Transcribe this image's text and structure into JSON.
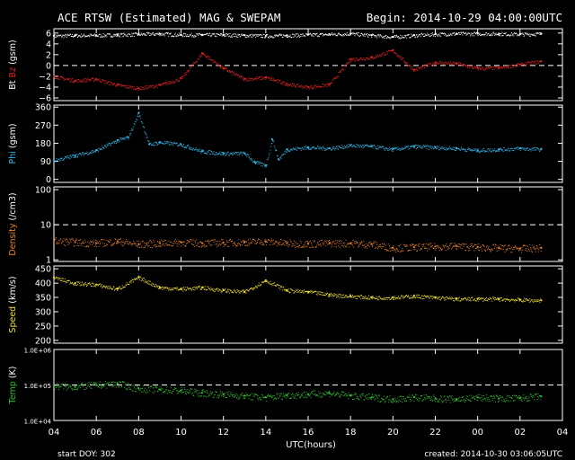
{
  "header": {
    "title": "ACE RTSW (Estimated) MAG & SWEPAM",
    "begin": "Begin: 2014-10-29 04:00:00UTC"
  },
  "footer": {
    "start_doy": "start DOY: 302",
    "created": "created: 2014-10-30 03:06:05UTC"
  },
  "colors": {
    "bt": "#ffffff",
    "bz": "#e02020",
    "phi": "#30b8e8",
    "density": "#e8802a",
    "speed": "#f0e030",
    "temp": "#30c030"
  },
  "chart_data": [
    {
      "type": "scatter",
      "ylabel_parts": [
        "Bt",
        "Bz",
        "(gsm)"
      ],
      "yticks": [
        6,
        4,
        2,
        0,
        -2,
        -4,
        -6
      ],
      "ytick_labels": [
        "6",
        "4",
        "2",
        "0",
        "−2",
        "−4",
        "−6"
      ],
      "ylim": [
        -6.5,
        6.8
      ],
      "dashed_ref": 0,
      "series": [
        {
          "name": "Bt",
          "x": [
            4,
            5,
            6,
            7,
            8,
            9,
            10,
            11,
            12,
            13,
            14,
            15,
            16,
            17,
            18,
            19,
            20,
            21,
            22,
            23,
            0,
            1,
            2,
            3
          ],
          "values": [
            5.5,
            5.6,
            5.6,
            5.7,
            5.8,
            5.9,
            5.7,
            5.7,
            5.7,
            5.6,
            5.5,
            5.6,
            5.7,
            5.8,
            5.9,
            5.6,
            5.3,
            5.6,
            5.8,
            5.9,
            5.9,
            5.9,
            5.8,
            5.9
          ]
        },
        {
          "name": "Bz",
          "x": [
            4,
            5,
            6,
            7,
            8,
            9,
            10,
            11,
            12,
            13,
            14,
            15,
            16,
            17,
            18,
            19,
            20,
            21,
            22,
            23,
            0,
            1,
            2,
            3
          ],
          "values": [
            -2.0,
            -2.8,
            -2.5,
            -3.6,
            -4.2,
            -3.6,
            -2.4,
            2.3,
            -0.5,
            -2.5,
            -2.2,
            -3.4,
            -4.0,
            -3.5,
            1.2,
            1.5,
            2.8,
            -0.8,
            0.6,
            0.4,
            -0.5,
            -0.4,
            0.2,
            0.8
          ]
        }
      ]
    },
    {
      "type": "scatter",
      "ylabel_parts": [
        "Phi",
        "(gsm)"
      ],
      "yticks": [
        360,
        270,
        180,
        90,
        0
      ],
      "ytick_labels": [
        "360",
        "270",
        "180",
        "90",
        "0"
      ],
      "ylim": [
        -15,
        370
      ],
      "series": [
        {
          "name": "Phi",
          "x": [
            4,
            5,
            6,
            7,
            7.5,
            8,
            8.5,
            9,
            10,
            11,
            12,
            13,
            13.5,
            14,
            14.3,
            14.6,
            15,
            16,
            17,
            18,
            19,
            20,
            21,
            22,
            23,
            0,
            1,
            2,
            3
          ],
          "values": [
            95,
            120,
            145,
            195,
            210,
            330,
            175,
            185,
            175,
            140,
            130,
            130,
            85,
            70,
            200,
            100,
            150,
            160,
            155,
            170,
            165,
            150,
            165,
            160,
            155,
            145,
            150,
            155,
            150
          ]
        }
      ]
    },
    {
      "type": "scatter",
      "ylabel_parts": [
        "Density",
        "(/cm3)"
      ],
      "yscale": "log",
      "yticks": [
        100,
        10,
        1
      ],
      "ytick_labels": [
        "100",
        "10",
        "1"
      ],
      "ylim": [
        0.9,
        120
      ],
      "dashed_ref": 10,
      "series": [
        {
          "name": "Density",
          "x": [
            4,
            5,
            6,
            7,
            8,
            9,
            10,
            11,
            12,
            13,
            14,
            15,
            16,
            17,
            18,
            19,
            20,
            21,
            22,
            23,
            0,
            1,
            2,
            3
          ],
          "values": [
            3.5,
            3.2,
            3.0,
            3.4,
            2.8,
            3.0,
            3.2,
            3.0,
            3.1,
            3.2,
            3.4,
            3.0,
            2.9,
            3.0,
            3.0,
            2.8,
            2.2,
            2.3,
            2.4,
            2.5,
            2.3,
            2.2,
            2.1,
            2.2
          ]
        }
      ]
    },
    {
      "type": "scatter",
      "ylabel_parts": [
        "Speed",
        "(km/s)"
      ],
      "yticks": [
        450,
        400,
        350,
        300,
        250,
        200
      ],
      "ytick_labels": [
        "450",
        "400",
        "350",
        "300",
        "250",
        "200"
      ],
      "ylim": [
        190,
        460
      ],
      "series": [
        {
          "name": "Speed",
          "x": [
            4,
            5,
            6,
            7,
            8,
            9,
            10,
            11,
            12,
            13,
            14,
            15,
            16,
            17,
            18,
            19,
            20,
            21,
            22,
            23,
            0,
            1,
            2,
            3
          ],
          "values": [
            420,
            400,
            395,
            380,
            420,
            385,
            380,
            385,
            375,
            370,
            410,
            375,
            370,
            360,
            355,
            350,
            350,
            355,
            350,
            345,
            345,
            345,
            342,
            340
          ]
        }
      ]
    },
    {
      "type": "scatter",
      "ylabel_parts": [
        "Temp",
        "(K)"
      ],
      "yscale": "log",
      "yticks": [
        1000000,
        100000,
        10000
      ],
      "ytick_labels": [
        "1.0E+06",
        "1.0E+05",
        "1.0E+04"
      ],
      "ylim": [
        10000,
        1000000
      ],
      "dashed_ref": 100000,
      "series": [
        {
          "name": "Temp",
          "x": [
            4,
            5,
            6,
            7,
            8,
            9,
            10,
            11,
            12,
            13,
            14,
            15,
            16,
            17,
            18,
            19,
            20,
            21,
            22,
            23,
            0,
            1,
            2,
            3
          ],
          "values": [
            95000,
            90000,
            100000,
            110000,
            80000,
            75000,
            70000,
            60000,
            55000,
            50000,
            45000,
            52000,
            55000,
            60000,
            50000,
            45000,
            40000,
            45000,
            42000,
            40000,
            45000,
            42000,
            43000,
            48000
          ]
        }
      ]
    }
  ],
  "xaxis": {
    "label": "UTC(hours)",
    "start_hour": 4,
    "span_hours": 24,
    "tick_labels": [
      "04",
      "06",
      "08",
      "10",
      "12",
      "14",
      "16",
      "18",
      "20",
      "22",
      "00",
      "02",
      "04"
    ]
  }
}
